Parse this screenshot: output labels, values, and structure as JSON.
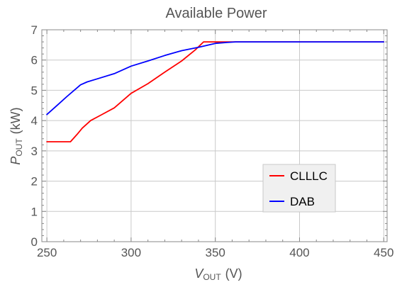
{
  "chart_data": {
    "type": "line",
    "title": "Available Power",
    "xlabel": {
      "main": "V",
      "sub": "OUT",
      "unit": "(V)"
    },
    "ylabel": {
      "main": "P",
      "sub": "OUT",
      "unit": "(kW)"
    },
    "xlim": [
      247,
      452
    ],
    "ylim": [
      0,
      7
    ],
    "xticks": [
      250,
      300,
      350,
      400,
      450
    ],
    "yticks": [
      0,
      1,
      2,
      3,
      4,
      5,
      6,
      7
    ],
    "grid": true,
    "legend_position": "lower-right",
    "series": [
      {
        "name": "CLLLC",
        "color": "#ff0000",
        "x": [
          250,
          255,
          260,
          264,
          268,
          271,
          276,
          282,
          290,
          300,
          310,
          320,
          330,
          338,
          343,
          347,
          352,
          360,
          380,
          400,
          450
        ],
        "y": [
          3.3,
          3.3,
          3.3,
          3.3,
          3.55,
          3.75,
          4.0,
          4.18,
          4.42,
          4.9,
          5.22,
          5.6,
          5.97,
          6.33,
          6.6,
          6.6,
          6.6,
          6.6,
          6.6,
          6.6,
          6.6
        ]
      },
      {
        "name": "DAB",
        "color": "#0000ff",
        "x": [
          250,
          256,
          262,
          270,
          274,
          280,
          290,
          300,
          310,
          320,
          330,
          340,
          350,
          357,
          362,
          380,
          400,
          450
        ],
        "y": [
          4.2,
          4.5,
          4.8,
          5.18,
          5.28,
          5.38,
          5.55,
          5.8,
          5.97,
          6.15,
          6.31,
          6.42,
          6.55,
          6.58,
          6.6,
          6.6,
          6.6,
          6.6
        ]
      }
    ]
  }
}
